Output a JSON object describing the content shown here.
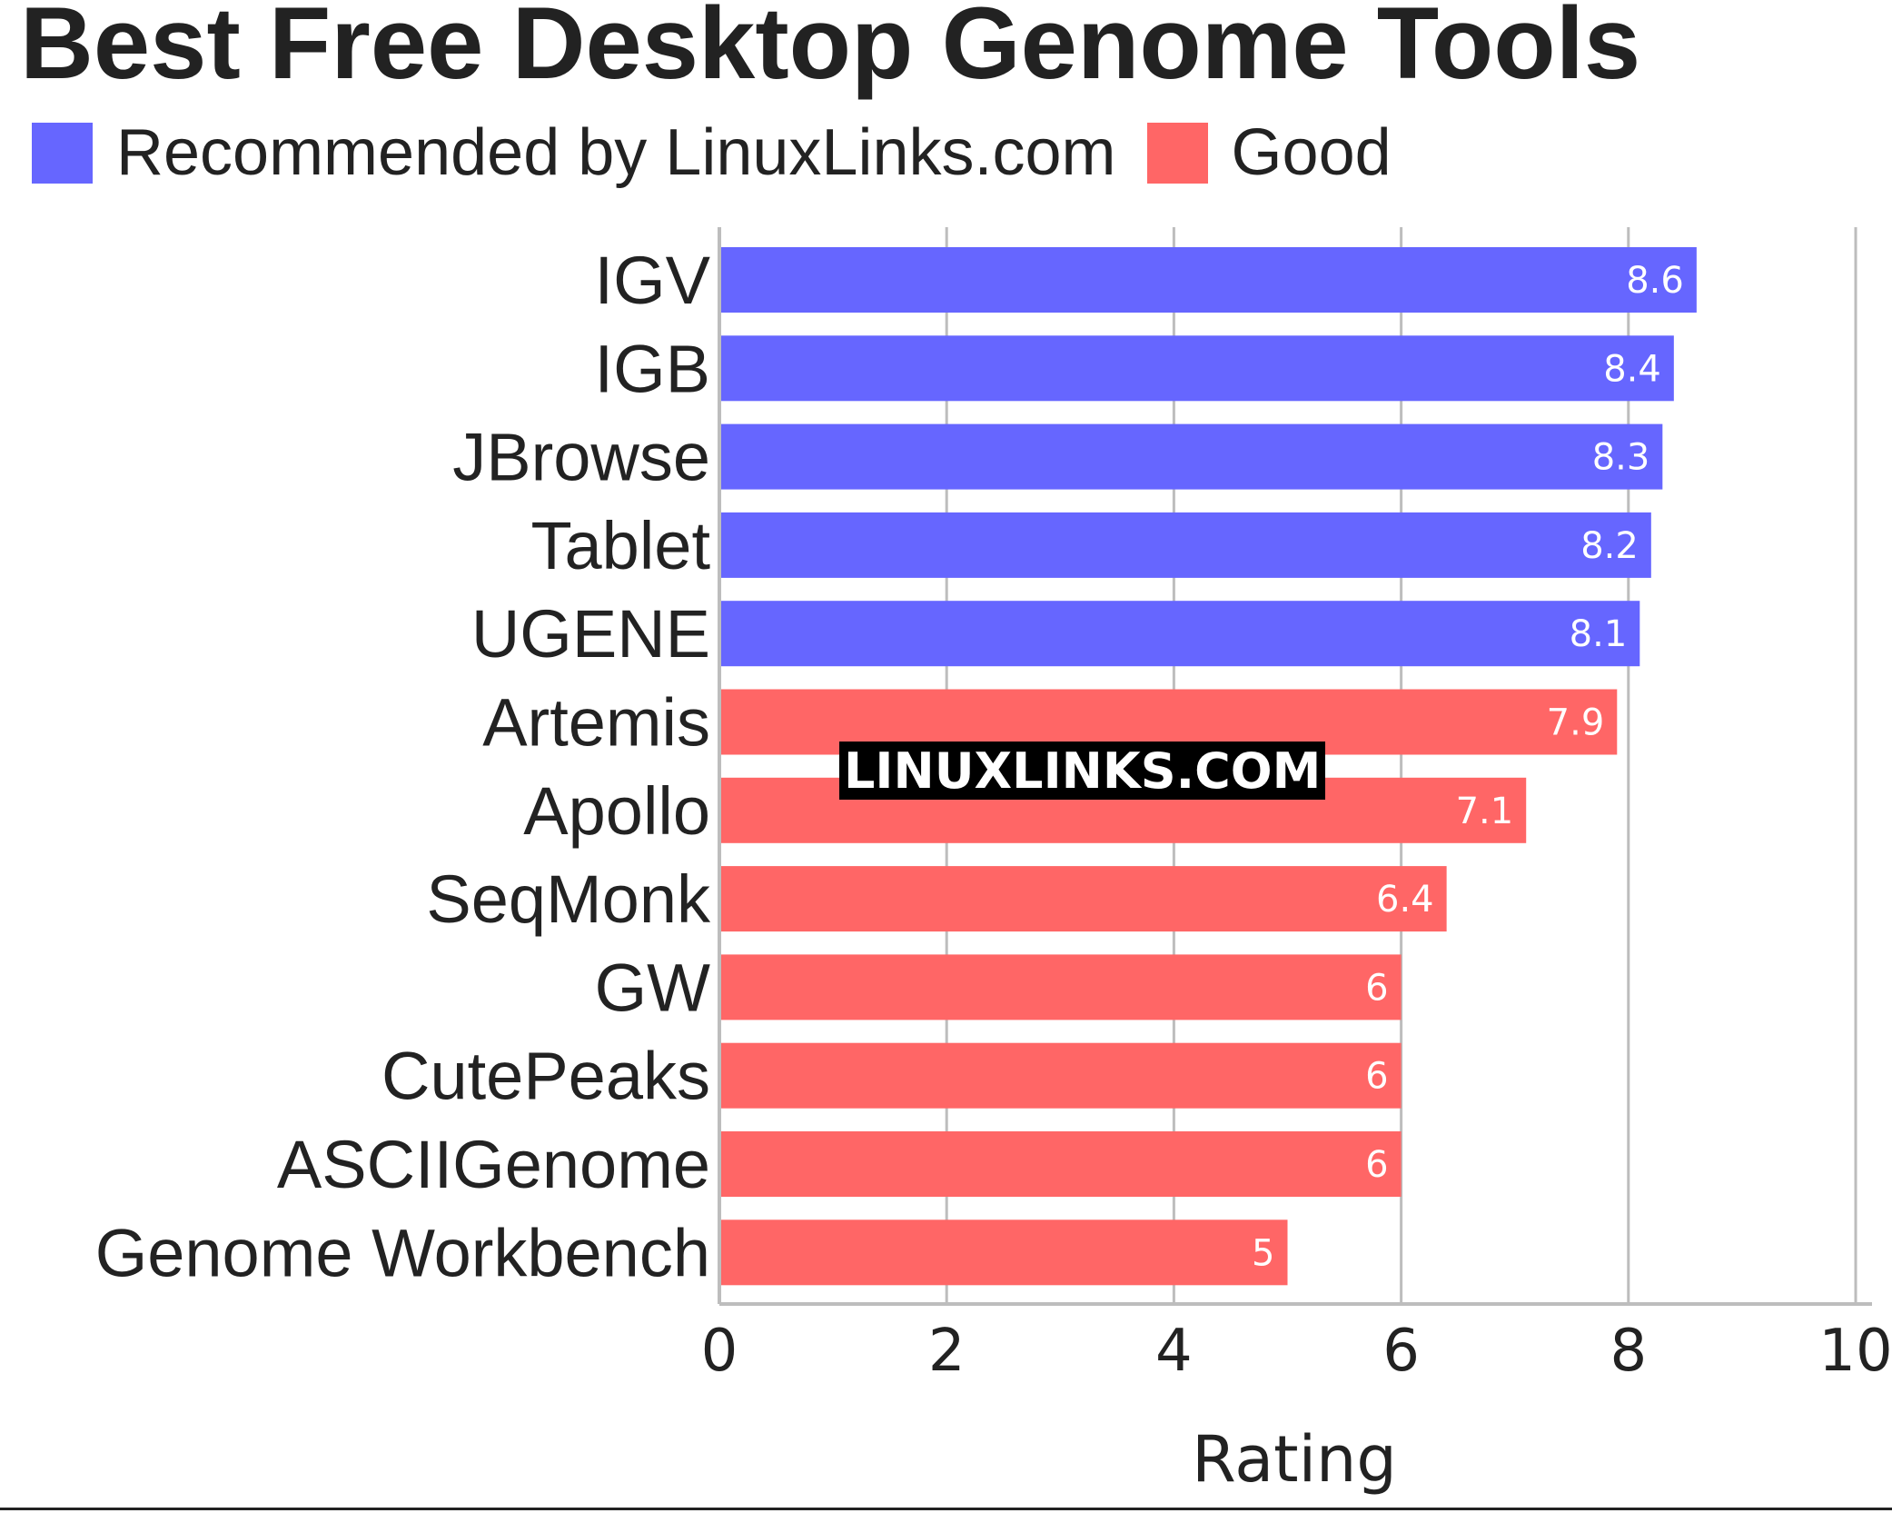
{
  "chart_data": {
    "type": "bar",
    "orientation": "horizontal",
    "title": "Best Free Desktop Genome Tools",
    "xlabel": "Rating",
    "ylabel": "",
    "xlim": [
      0,
      10
    ],
    "xticks": [
      "0",
      "2",
      "4",
      "6",
      "8",
      "10"
    ],
    "grid": true,
    "legend_placement": "top-left",
    "legend": [
      {
        "name": "Recommended by LinuxLinks.com",
        "color": "#6666ff"
      },
      {
        "name": "Good",
        "color": "#ff6666"
      }
    ],
    "categories": [
      "IGV",
      "IGB",
      "JBrowse",
      "Tablet",
      "UGENE",
      "Artemis",
      "Apollo",
      "SeqMonk",
      "GW",
      "CutePeaks",
      "ASCIIGenome",
      "Genome Workbench"
    ],
    "values": [
      8.6,
      8.4,
      8.3,
      8.2,
      8.1,
      7.9,
      7.1,
      6.4,
      6,
      6,
      6,
      5
    ],
    "value_labels": [
      "8.6",
      "8.4",
      "8.3",
      "8.2",
      "8.1",
      "7.9",
      "7.1",
      "6.4",
      "6",
      "6",
      "6",
      "5"
    ],
    "groups": [
      "Recommended by LinuxLinks.com",
      "Recommended by LinuxLinks.com",
      "Recommended by LinuxLinks.com",
      "Recommended by LinuxLinks.com",
      "Recommended by LinuxLinks.com",
      "Good",
      "Good",
      "Good",
      "Good",
      "Good",
      "Good",
      "Good"
    ]
  },
  "watermark": {
    "text": "LINUXLINKS.COM"
  }
}
